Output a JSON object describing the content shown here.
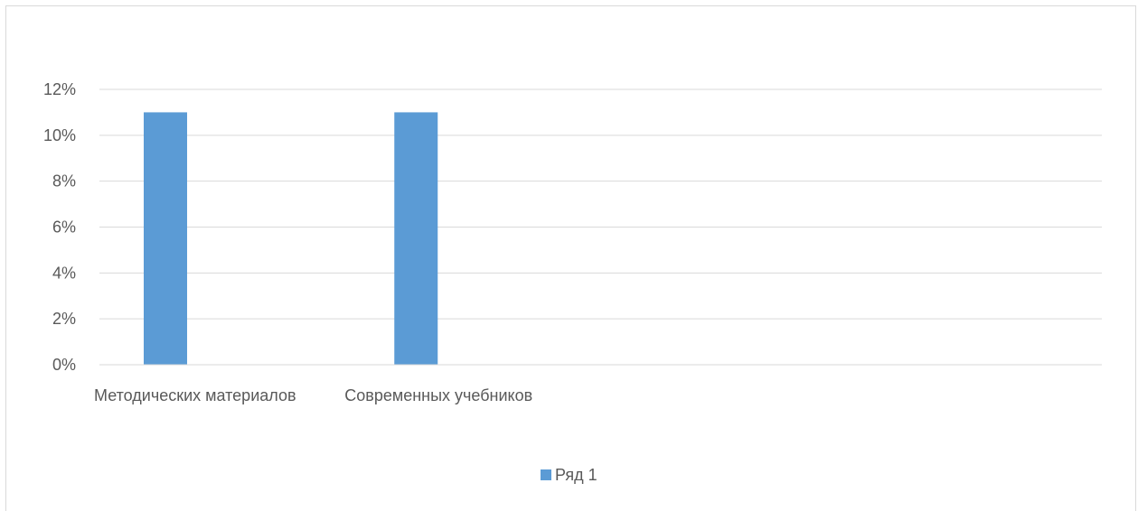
{
  "chart_data": {
    "type": "bar",
    "categories": [
      "Методических материалов",
      "Современных учебников",
      "",
      ""
    ],
    "series": [
      {
        "name": "Ряд 1",
        "values": [
          0.11,
          0.11,
          null,
          null
        ],
        "color": "#5b9bd5"
      }
    ],
    "y_ticks": [
      "0%",
      "2%",
      "4%",
      "6%",
      "8%",
      "10%",
      "12%"
    ],
    "ylim": [
      0,
      0.12
    ],
    "y_format": "percent",
    "grid": true,
    "gridline_color": "#d9d9d9",
    "legend_position": "bottom",
    "title": "",
    "xlabel": "",
    "ylabel": ""
  }
}
